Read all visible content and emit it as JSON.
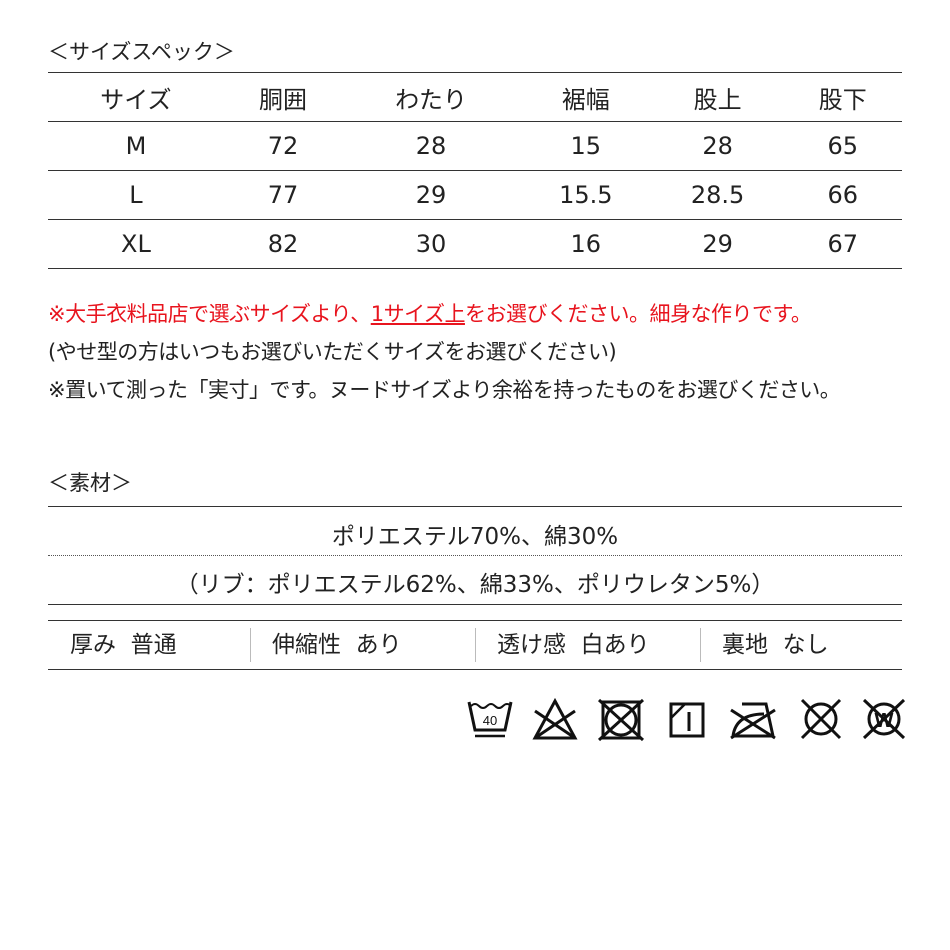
{
  "size_section": {
    "title": "＜サイズスペック＞",
    "headers": [
      "サイズ",
      "胴囲",
      "わたり",
      "裾幅",
      "股上",
      "股下"
    ],
    "rows": [
      [
        "M",
        "72",
        "28",
        "15",
        "28",
        "65"
      ],
      [
        "L",
        "77",
        "29",
        "15.5",
        "28.5",
        "66"
      ],
      [
        "XL",
        "82",
        "30",
        "16",
        "29",
        "67"
      ]
    ]
  },
  "notes": {
    "red_pre": "※大手衣料品店で選ぶサイズより、",
    "red_underlined": "1サイズ上",
    "red_post": "をお選びください。細身な作りです。",
    "line2": "(やせ型の方はいつもお選びいただくサイズをお選びください)",
    "line3": "※置いて測った「実寸」です。ヌードサイズより余裕を持ったものをお選びください。"
  },
  "material_section": {
    "title": "＜素材＞",
    "main": "ポリエステル70%、綿30%",
    "rib": "（リブ：ポリエステル62%、綿33%、ポリウレタン5%）",
    "attributes": [
      {
        "label": "厚み",
        "value": "普通"
      },
      {
        "label": "伸縮性",
        "value": "あり"
      },
      {
        "label": "透け感",
        "value": "白あり"
      },
      {
        "label": "裏地",
        "value": "なし"
      }
    ]
  },
  "care_icons": [
    {
      "name": "wash-40-gentle-icon",
      "text": "40"
    },
    {
      "name": "no-bleach-icon"
    },
    {
      "name": "no-tumble-dry-icon"
    },
    {
      "name": "line-dry-shade-icon",
      "text": "1"
    },
    {
      "name": "no-iron-icon"
    },
    {
      "name": "no-dry-clean-icon"
    },
    {
      "name": "no-wet-clean-icon",
      "text": "W"
    }
  ],
  "colors": {
    "accent": "#e8141e",
    "text": "#222222"
  }
}
